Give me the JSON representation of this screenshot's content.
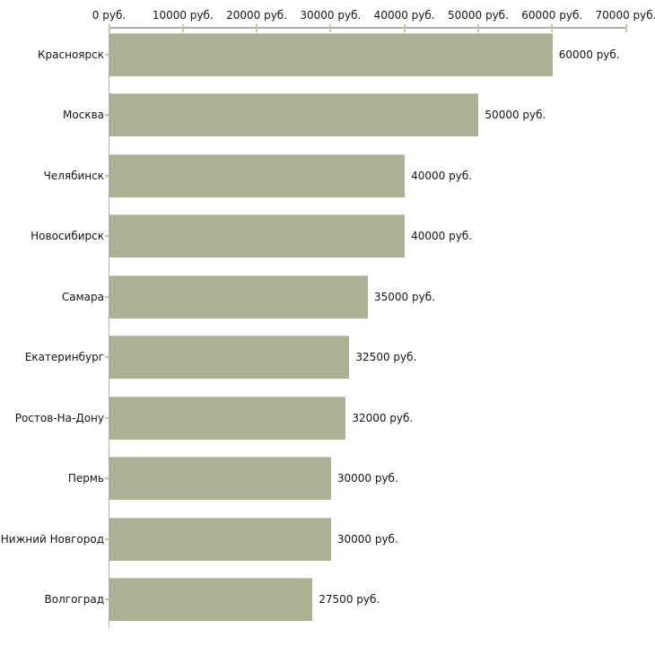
{
  "chart_data": {
    "type": "bar",
    "orientation": "horizontal",
    "title": "",
    "xlabel": "",
    "ylabel": "",
    "grid": false,
    "legend": false,
    "categories": [
      "Красноярск",
      "Москва",
      "Челябинск",
      "Новосибирск",
      "Самара",
      "Екатеринбург",
      "Ростов-На-Дону",
      "Пермь",
      "Нижний Новгород",
      "Волгоград"
    ],
    "values": [
      60000,
      50000,
      40000,
      40000,
      35000,
      32500,
      32000,
      30000,
      30000,
      27500
    ],
    "value_labels": [
      "60000 руб.",
      "50000 руб.",
      "40000 руб.",
      "40000 руб.",
      "35000 руб.",
      "32500 руб.",
      "32000 руб.",
      "30000 руб.",
      "30000 руб.",
      "27500 руб."
    ],
    "x_axis": {
      "position": "top",
      "range": [
        0,
        70000
      ],
      "ticks": [
        0,
        10000,
        20000,
        30000,
        40000,
        50000,
        60000,
        70000
      ],
      "tick_labels": [
        "0 руб.",
        "10000 руб.",
        "20000 руб.",
        "30000 руб.",
        "40000 руб.",
        "50000 руб.",
        "60000 руб.",
        "70000 руб."
      ]
    },
    "colors": {
      "bar": "#acb194",
      "bar_top_edge": "#c6c9b2",
      "axis_line": "#b0b0b0",
      "tick_mark": "#c9c79e",
      "text": "#151515",
      "background": "#ffffff"
    }
  }
}
